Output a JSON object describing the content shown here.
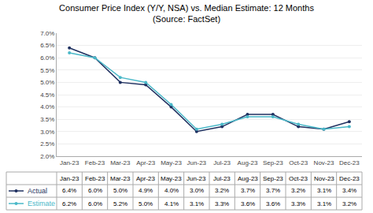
{
  "chart_data": {
    "type": "line",
    "title": "Consumer Price Index (Y/Y, NSA) vs. Median Estimate: 12 Months",
    "subtitle": "(Source: FactSet)",
    "categories": [
      "Jan-23",
      "Feb-23",
      "Mar-23",
      "Apr-23",
      "May-23",
      "Jun-23",
      "Jul-23",
      "Aug-23",
      "Sep-23",
      "Oct-23",
      "Nov-23",
      "Dec-23"
    ],
    "series": [
      {
        "name": "Actual",
        "color": "#1f3060",
        "marker": "circle",
        "values": [
          6.4,
          6.0,
          5.0,
          4.9,
          4.0,
          3.0,
          3.2,
          3.7,
          3.7,
          3.2,
          3.1,
          3.4
        ],
        "value_labels": [
          "6.4%",
          "6.0%",
          "5.0%",
          "4.9%",
          "4.0%",
          "3.0%",
          "3.2%",
          "3.7%",
          "3.7%",
          "3.2%",
          "3.1%",
          "3.4%"
        ]
      },
      {
        "name": "Estimate",
        "color": "#4ab8c8",
        "marker": "circle",
        "values": [
          6.2,
          6.0,
          5.2,
          5.0,
          4.1,
          3.1,
          3.3,
          3.6,
          3.6,
          3.3,
          3.1,
          3.2
        ],
        "value_labels": [
          "6.2%",
          "6.0%",
          "5.2%",
          "5.0%",
          "4.1%",
          "3.1%",
          "3.3%",
          "3.6%",
          "3.6%",
          "3.3%",
          "3.1%",
          "3.2%"
        ]
      }
    ],
    "ylim": [
      2.0,
      7.0
    ],
    "yticks": [
      {
        "value": 2.0,
        "label": "2.0%"
      },
      {
        "value": 2.5,
        "label": "2.5%"
      },
      {
        "value": 3.0,
        "label": "3.0%"
      },
      {
        "value": 3.5,
        "label": "3.5%"
      },
      {
        "value": 4.0,
        "label": "4.0%"
      },
      {
        "value": 4.5,
        "label": "4.5%"
      },
      {
        "value": 5.0,
        "label": "5.0%"
      },
      {
        "value": 5.5,
        "label": "5.5%"
      },
      {
        "value": 6.0,
        "label": "6.0%"
      },
      {
        "value": 6.5,
        "label": "6.5%"
      },
      {
        "value": 7.0,
        "label": "7.0%"
      }
    ],
    "grid": true
  }
}
